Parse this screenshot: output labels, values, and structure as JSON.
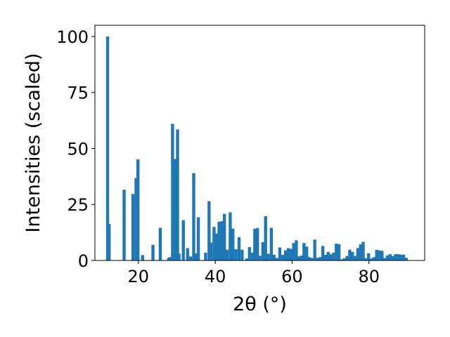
{
  "chart_data": {
    "type": "bar",
    "title": "",
    "xlabel": "2θ (°)",
    "ylabel": "Intensities (scaled)",
    "xlim": [
      8.7,
      94.5
    ],
    "ylim": [
      0,
      105
    ],
    "x_ticks": [
      20,
      40,
      60,
      80
    ],
    "y_ticks": [
      0,
      25,
      50,
      75,
      100
    ],
    "grid": false,
    "bar_width": 0.8,
    "bar_color": "#1f77b4",
    "x": [
      12.0,
      12.4,
      16.3,
      18.6,
      19.4,
      19.9,
      21.1,
      23.8,
      25.7,
      27.9,
      28.3,
      28.9,
      29.5,
      30.2,
      30.6,
      31.7,
      32.8,
      33.6,
      34.4,
      35.0,
      35.6,
      37.5,
      38.4,
      38.9,
      39.7,
      40.3,
      41.0,
      41.7,
      42.4,
      43.1,
      43.9,
      44.6,
      45.4,
      46.2,
      47.0,
      48.2,
      48.9,
      49.7,
      50.3,
      51.0,
      51.6,
      52.4,
      53.1,
      53.8,
      54.6,
      55.3,
      56.1,
      56.8,
      57.6,
      58.3,
      59.0,
      59.7,
      60.4,
      61.1,
      61.8,
      62.5,
      63.1,
      63.8,
      64.5,
      65.2,
      65.9,
      66.6,
      67.3,
      68.0,
      68.7,
      69.4,
      70.1,
      70.8,
      71.5,
      72.2,
      72.9,
      73.6,
      74.3,
      75.0,
      75.7,
      76.4,
      77.1,
      77.8,
      78.5,
      79.2,
      79.9,
      80.6,
      81.3,
      82.0,
      82.7,
      83.4,
      84.1,
      84.8,
      85.5,
      86.2,
      86.9,
      87.6,
      88.3,
      89.0,
      89.7
    ],
    "values": [
      100,
      16.3,
      31.6,
      29.7,
      36.8,
      45.1,
      2.4,
      7.0,
      14.6,
      1.2,
      1.5,
      61,
      45.3,
      58.5,
      3.0,
      18.0,
      5.5,
      1.8,
      39.0,
      3.2,
      19.3,
      3.5,
      26.5,
      8.0,
      15.0,
      12.0,
      17.3,
      17.5,
      20.8,
      4.8,
      21.5,
      14.2,
      5.0,
      10.4,
      4.8,
      0.9,
      6.0,
      3.5,
      14.2,
      14.5,
      2.1,
      8.2,
      19.8,
      3.0,
      14.6,
      2.5,
      1.1,
      5.8,
      2.5,
      4.5,
      5.5,
      5.2,
      7.8,
      9.0,
      1.8,
      2.2,
      7.8,
      6.2,
      1.5,
      1.1,
      9.3,
      1.2,
      1.5,
      6.5,
      2.5,
      3.8,
      2.8,
      3.5,
      7.5,
      7.3,
      0.5,
      1.0,
      2.0,
      4.8,
      3.8,
      2.0,
      5.5,
      7.2,
      8.3,
      1.0,
      3.2,
      0.9,
      1.5,
      4.7,
      4.5,
      4.3,
      1.1,
      2.3,
      2.8,
      2.0,
      2.8,
      2.8,
      2.6,
      2.6,
      1.2
    ]
  }
}
